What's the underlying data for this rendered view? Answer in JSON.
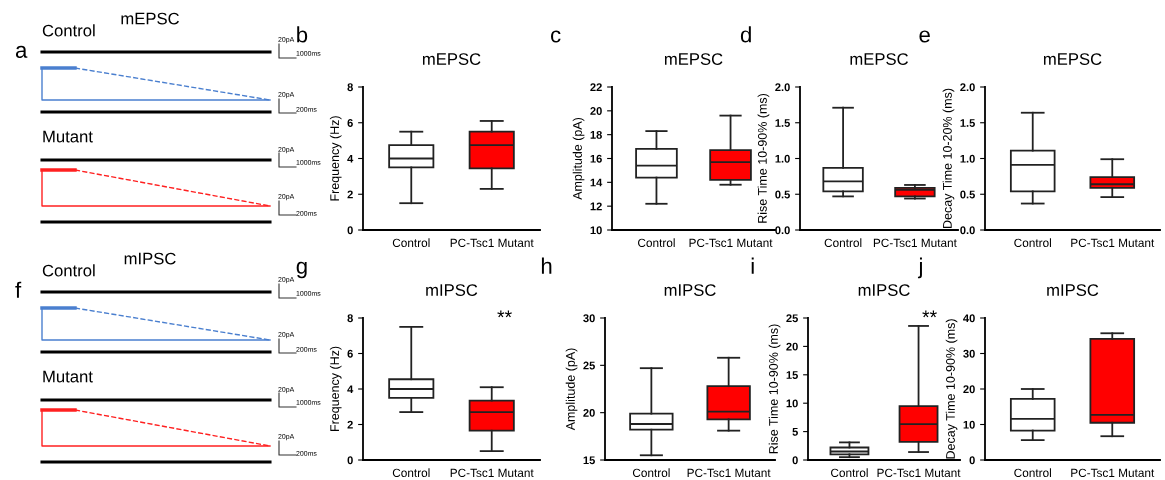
{
  "chart_data": [
    {
      "type": "other",
      "title": "mEPSC",
      "annotations": [
        "a",
        "Control",
        "20pA",
        "1000ms",
        "20pA",
        "200ms",
        "Mutant",
        "20pA",
        "1000ms",
        "20pA",
        "200ms"
      ]
    },
    {
      "type": "box",
      "title": "mEPSC",
      "ylabel": "Frequency (Hz)",
      "categories": [
        "Control",
        "PC-Tsc1 Mutant"
      ],
      "colors": [
        "#ffffff",
        "#ff0000"
      ],
      "ylim": [
        0,
        8
      ],
      "yticks": [
        0,
        2,
        4,
        6,
        8
      ],
      "annotations": [
        "b"
      ],
      "boxes": [
        {
          "low": 1.5,
          "q1": 3.5,
          "median": 4.0,
          "q3": 4.75,
          "high": 5.5
        },
        {
          "low": 2.3,
          "q1": 3.45,
          "median": 4.75,
          "q3": 5.5,
          "high": 6.1
        }
      ]
    },
    {
      "type": "box",
      "title": "mEPSC",
      "ylabel": "Amplitude (pA)",
      "categories": [
        "Control",
        "PC-Tsc1 Mutant"
      ],
      "colors": [
        "#ffffff",
        "#ff0000"
      ],
      "ylim": [
        10,
        22
      ],
      "yticks": [
        10,
        12,
        14,
        16,
        18,
        20,
        22
      ],
      "annotations": [
        "c"
      ],
      "boxes": [
        {
          "low": 12.2,
          "q1": 14.4,
          "median": 15.4,
          "q3": 16.8,
          "high": 18.3
        },
        {
          "low": 13.8,
          "q1": 14.2,
          "median": 15.7,
          "q3": 16.7,
          "high": 19.6
        }
      ]
    },
    {
      "type": "box",
      "title": "mEPSC",
      "ylabel": "Rise Time 10-90% (ms)",
      "categories": [
        "Control",
        "PC-Tsc1 Mutant"
      ],
      "colors": [
        "#ffffff",
        "#ff0000"
      ],
      "ylim": [
        0,
        2
      ],
      "yticks": [
        {
          "value": 0,
          "label": "0.0"
        },
        {
          "value": 0.5,
          "label": "0.5"
        },
        {
          "value": 1,
          "label": "1.0"
        },
        {
          "value": 1.5,
          "label": "1.5"
        },
        {
          "value": 2,
          "label": "2.0"
        }
      ],
      "annotations": [
        "d"
      ],
      "boxes": [
        {
          "low": 0.47,
          "q1": 0.54,
          "median": 0.68,
          "q3": 0.87,
          "high": 1.71
        },
        {
          "low": 0.44,
          "q1": 0.47,
          "median": 0.56,
          "q3": 0.59,
          "high": 0.63
        }
      ]
    },
    {
      "type": "box",
      "title": "mEPSC",
      "ylabel": "Decay Time 10-20% (ms)",
      "categories": [
        "Control",
        "PC-Tsc1 Mutant"
      ],
      "colors": [
        "#ffffff",
        "#ff0000"
      ],
      "ylim": [
        0,
        2
      ],
      "yticks": [
        {
          "value": 0,
          "label": "0.0"
        },
        {
          "value": 0.5,
          "label": "0.5"
        },
        {
          "value": 1,
          "label": "1.0"
        },
        {
          "value": 1.5,
          "label": "1.5"
        },
        {
          "value": 2,
          "label": "2.0"
        }
      ],
      "annotations": [
        "e"
      ],
      "boxes": [
        {
          "low": 0.37,
          "q1": 0.54,
          "median": 0.91,
          "q3": 1.11,
          "high": 1.64
        },
        {
          "low": 0.46,
          "q1": 0.59,
          "median": 0.64,
          "q3": 0.74,
          "high": 0.99
        }
      ]
    },
    {
      "type": "other",
      "title": "mIPSC",
      "annotations": [
        "f",
        "Control",
        "20pA",
        "1000ms",
        "20pA",
        "200ms",
        "Mutant",
        "20pA",
        "1000ms",
        "20pA",
        "200ms"
      ]
    },
    {
      "type": "box",
      "title": "mIPSC",
      "ylabel": "Frequency (Hz)",
      "categories": [
        "Control",
        "PC-Tsc1 Mutant"
      ],
      "colors": [
        "#ffffff",
        "#ff0000"
      ],
      "ylim": [
        0,
        8
      ],
      "yticks": [
        0,
        2,
        4,
        6,
        8
      ],
      "annotations": [
        "g",
        "**"
      ],
      "boxes": [
        {
          "low": 2.7,
          "q1": 3.5,
          "median": 4.0,
          "q3": 4.55,
          "high": 7.5
        },
        {
          "low": 0.5,
          "q1": 1.65,
          "median": 2.7,
          "q3": 3.35,
          "high": 4.1
        }
      ]
    },
    {
      "type": "box",
      "title": "mIPSC",
      "ylabel": "Amplitude (pA)",
      "categories": [
        "Control",
        "PC-Tsc1 Mutant"
      ],
      "colors": [
        "#ffffff",
        "#ff0000"
      ],
      "ylim": [
        15,
        30
      ],
      "yticks": [
        15,
        20,
        25,
        30
      ],
      "annotations": [
        "h"
      ],
      "boxes": [
        {
          "low": 15.5,
          "q1": 18.2,
          "median": 18.8,
          "q3": 19.9,
          "high": 24.7
        },
        {
          "low": 18.1,
          "q1": 19.3,
          "median": 20.1,
          "q3": 22.8,
          "high": 25.8
        }
      ]
    },
    {
      "type": "box",
      "title": "mIPSC",
      "ylabel": "Rise Time 10-90% (ms)",
      "categories": [
        "Control",
        "PC-Tsc1 Mutant"
      ],
      "colors": [
        "#ffffff",
        "#ff0000"
      ],
      "ylim": [
        0,
        25
      ],
      "yticks": [
        0,
        5,
        10,
        15,
        20,
        25
      ],
      "annotations": [
        "i",
        "**"
      ],
      "boxes": [
        {
          "low": 0.5,
          "q1": 1.0,
          "median": 1.5,
          "q3": 2.2,
          "high": 3.1
        },
        {
          "low": 1.4,
          "q1": 3.2,
          "median": 6.3,
          "q3": 9.5,
          "high": 23.6
        }
      ]
    },
    {
      "type": "box",
      "title": "mIPSC",
      "ylabel": "Decay Time 10-90% (ms)",
      "categories": [
        "Control",
        "PC-Tsc1 Mutant"
      ],
      "colors": [
        "#ffffff",
        "#ff0000"
      ],
      "ylim": [
        0,
        40
      ],
      "yticks": [
        0,
        10,
        20,
        30,
        40
      ],
      "annotations": [
        "j"
      ],
      "boxes": [
        {
          "low": 5.6,
          "q1": 8.3,
          "median": 11.6,
          "q3": 17.2,
          "high": 20.0
        },
        {
          "low": 6.7,
          "q1": 10.5,
          "median": 12.7,
          "q3": 34.1,
          "high": 35.7
        }
      ]
    }
  ]
}
